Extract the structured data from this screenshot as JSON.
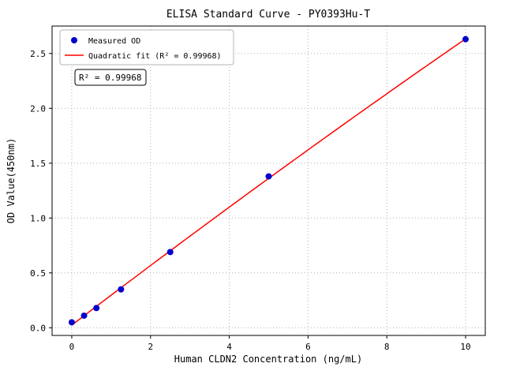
{
  "chart_data": {
    "type": "scatter",
    "title": "ELISA Standard Curve - PY0393Hu-T",
    "xlabel": "Human CLDN2 Concentration (ng/mL)",
    "ylabel": "OD Value(450nm)",
    "xlim": [
      -0.5,
      10.5
    ],
    "ylim": [
      -0.07,
      2.75
    ],
    "xticks": [
      0,
      2,
      4,
      6,
      8,
      10
    ],
    "yticks": [
      0.0,
      0.5,
      1.0,
      1.5,
      2.0,
      2.5
    ],
    "grid": true,
    "legend_position": "upper-left",
    "series": [
      {
        "name": "Measured OD",
        "type": "scatter",
        "color": "#0000cd",
        "x": [
          0,
          0.3125,
          0.625,
          1.25,
          2.5,
          5,
          10
        ],
        "y": [
          0.05,
          0.11,
          0.18,
          0.35,
          0.69,
          1.38,
          2.63
        ]
      },
      {
        "name": "Quadratic fit (R² = 0.99968)",
        "type": "line",
        "color": "#ff0000",
        "fit": "quadratic",
        "r_squared": 0.99968
      }
    ],
    "annotation": "R² = 0.99968"
  }
}
